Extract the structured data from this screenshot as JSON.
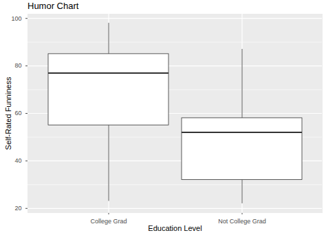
{
  "chart_data": {
    "type": "box",
    "title": "Humor Chart",
    "x_label": "Education Level",
    "y_label": "Self-Rated Funniness",
    "categories": [
      "College Grad",
      "Not College Grad"
    ],
    "min": [
      23,
      22
    ],
    "q1": [
      55,
      32
    ],
    "median": [
      77,
      52
    ],
    "q3": [
      85,
      58
    ],
    "max": [
      98,
      87
    ],
    "ylim": [
      18.2,
      101.8
    ],
    "yticks": [
      20,
      40,
      60,
      80,
      100
    ],
    "grid": true
  }
}
